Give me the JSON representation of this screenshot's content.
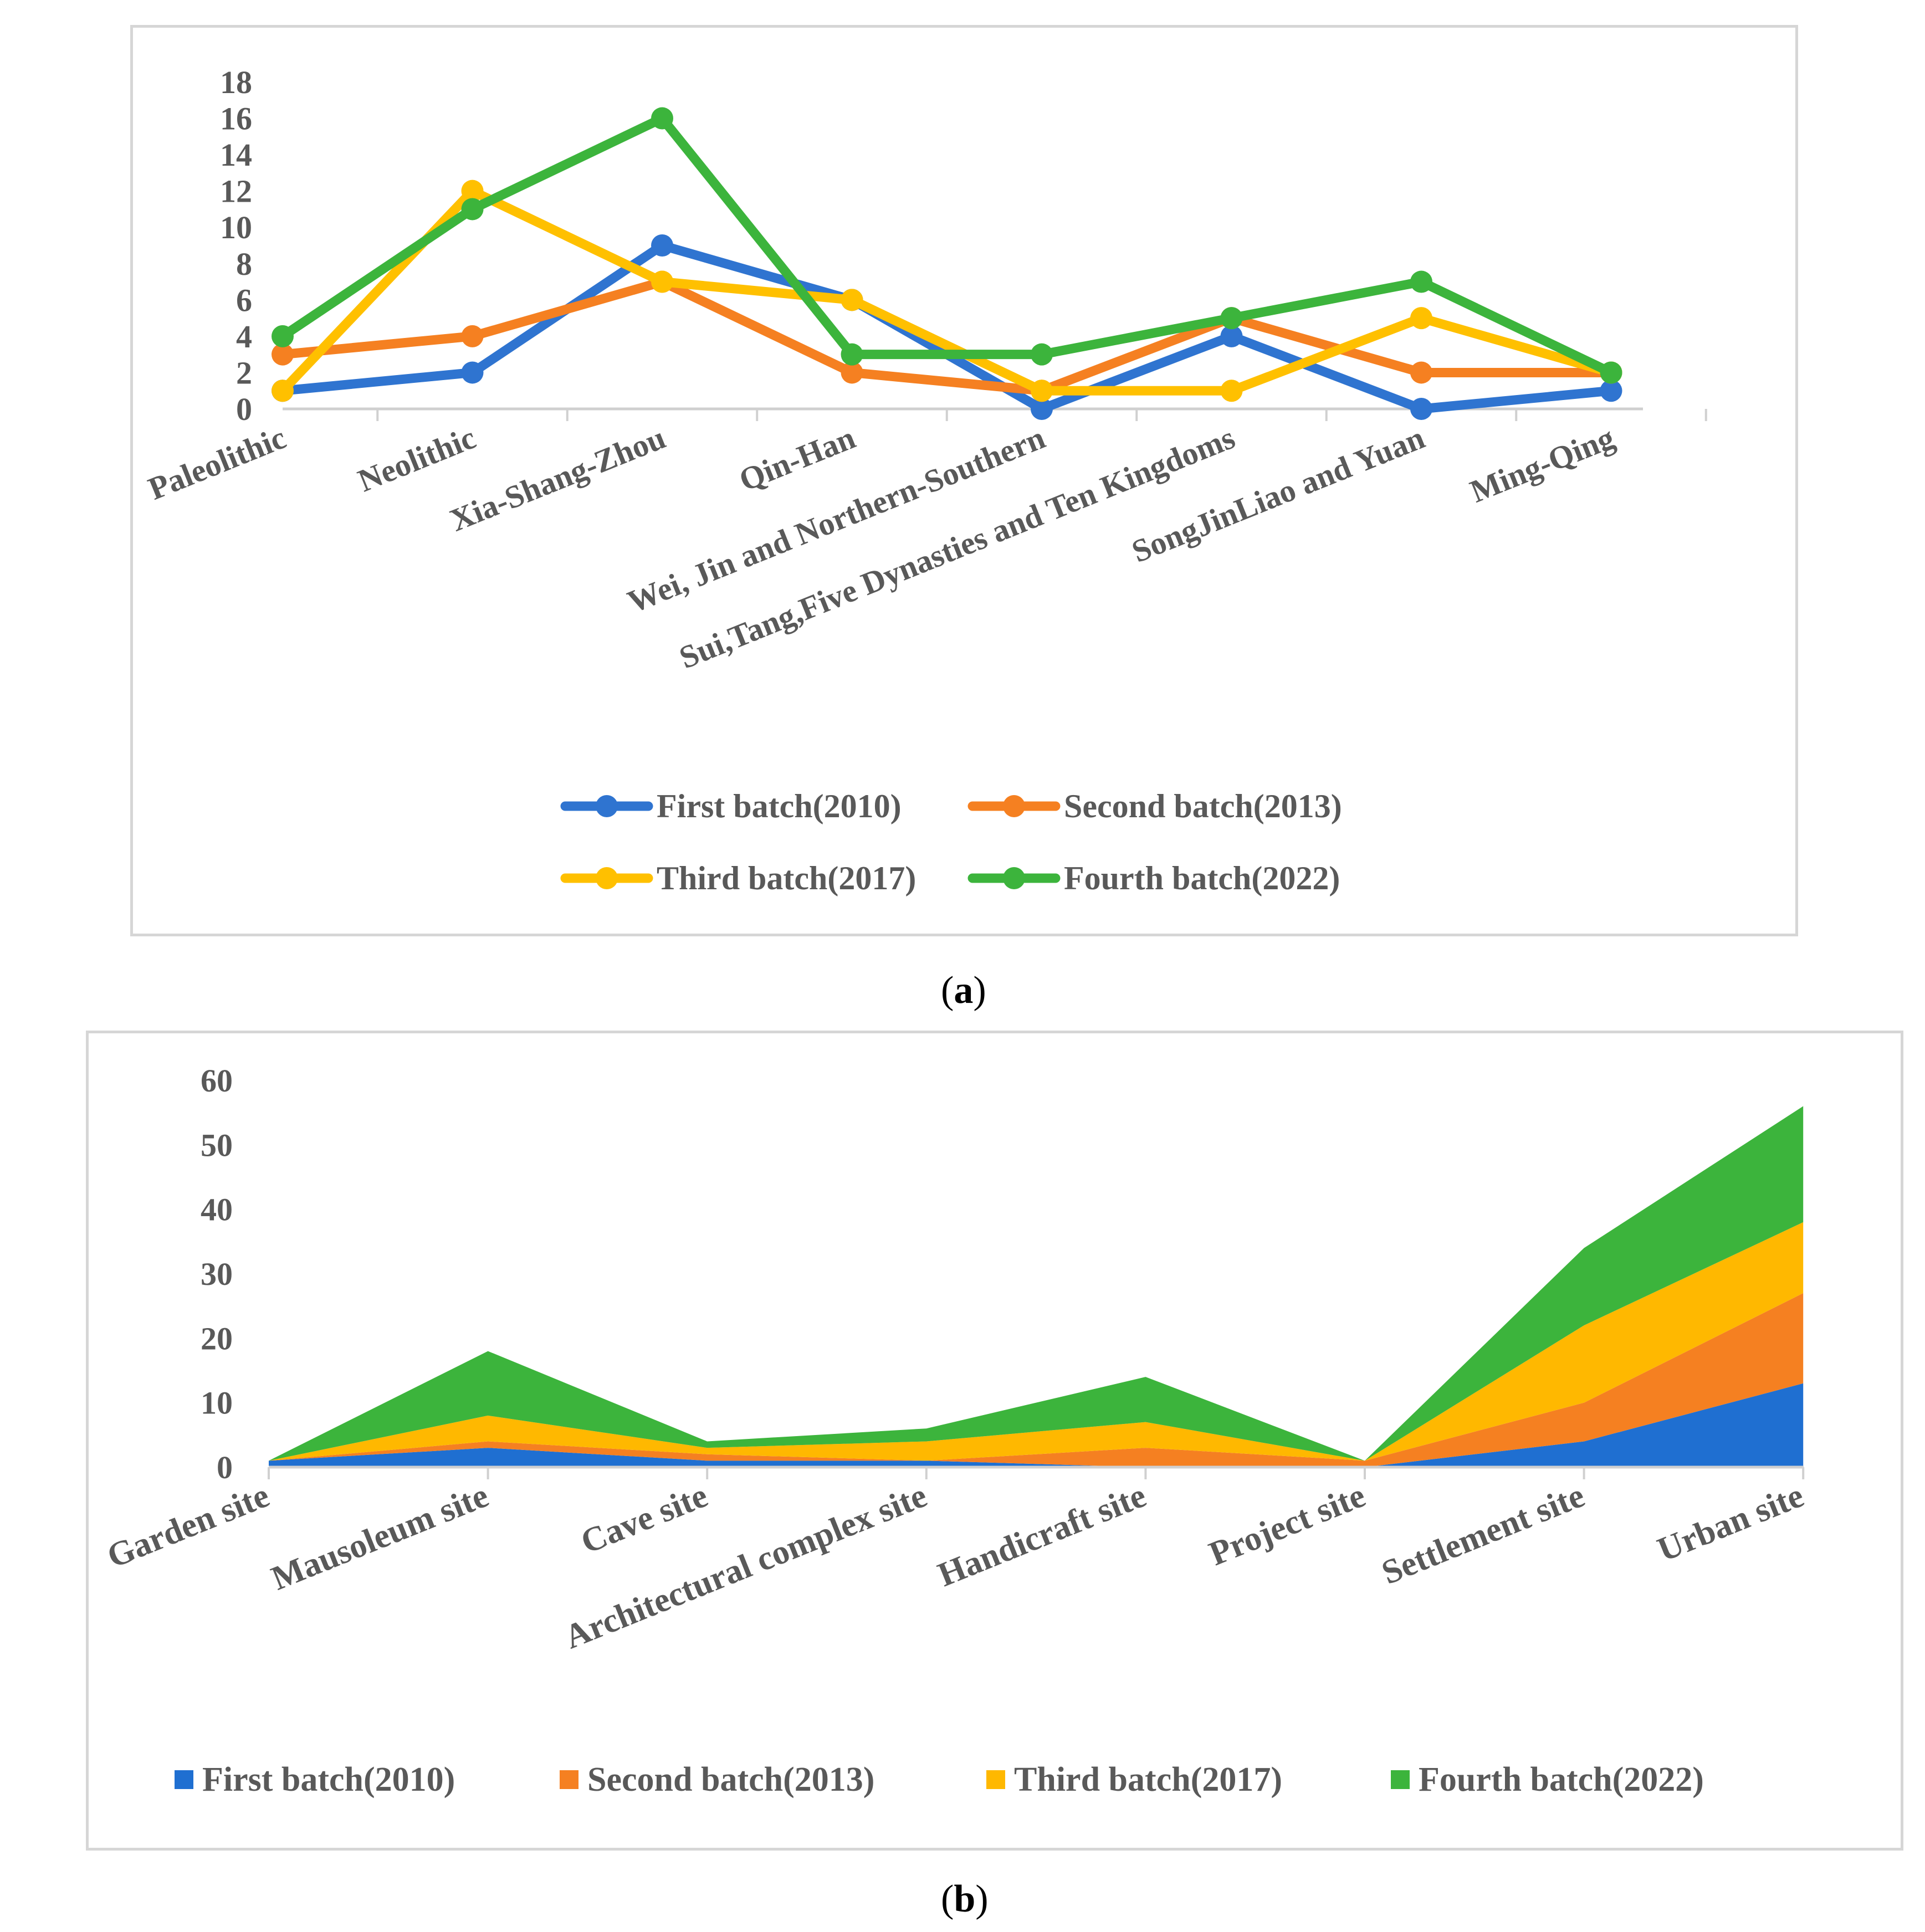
{
  "chart_data": [
    {
      "type": "line",
      "panel": "a",
      "title": "",
      "xlabel": "",
      "ylabel": "",
      "categories": [
        "Paleolithic",
        "Neolithic",
        "Xia-Shang-Zhou",
        "Qin-Han",
        "Wei, Jin and Northern-Southern",
        "Sui,Tang,Five Dynasties and Ten Kingdoms",
        "SongJinLiao and Yuan",
        "Ming-Qing"
      ],
      "yticks": [
        "0",
        "2",
        "4",
        "6",
        "8",
        "10",
        "12",
        "14",
        "16",
        "18"
      ],
      "ylim": [
        0,
        18
      ],
      "series": [
        {
          "name": "First batch(2010)",
          "color": "#2f74d0",
          "values": [
            1,
            2,
            9,
            6,
            0,
            4,
            0,
            1
          ]
        },
        {
          "name": "Second batch(2013)",
          "color": "#f58021",
          "values": [
            3,
            4,
            7,
            2,
            1,
            5,
            2,
            2
          ]
        },
        {
          "name": "Third batch(2017)",
          "color": "#ffc000",
          "values": [
            1,
            12,
            7,
            6,
            1,
            1,
            5,
            2
          ]
        },
        {
          "name": "Fourth batch(2022)",
          "color": "#3cb43c",
          "values": [
            4,
            11,
            16,
            3,
            3,
            5,
            7,
            2
          ]
        }
      ],
      "legend_position": "bottom"
    },
    {
      "type": "area",
      "panel": "b",
      "stacked": true,
      "title": "",
      "xlabel": "",
      "ylabel": "",
      "categories": [
        "Garden site",
        "Mausoleum site",
        "Cave site",
        "Architectural complex site",
        "Handicraft site",
        "Project site",
        "Settlement site",
        "Urban site"
      ],
      "yticks": [
        "0",
        "10",
        "20",
        "30",
        "40",
        "50",
        "60"
      ],
      "ylim": [
        0,
        60
      ],
      "series": [
        {
          "name": "First batch(2010)",
          "color": "#1f6fd1",
          "values": [
            1,
            3,
            1,
            1,
            0,
            0,
            4,
            13
          ]
        },
        {
          "name": "Second batch(2013)",
          "color": "#f58021",
          "values": [
            0,
            1,
            1,
            0,
            3,
            1,
            6,
            14
          ]
        },
        {
          "name": "Third batch(2017)",
          "color": "#ffb800",
          "values": [
            0,
            4,
            1,
            3,
            4,
            0,
            12,
            11
          ]
        },
        {
          "name": "Fourth batch(2022)",
          "color": "#3cb43c",
          "values": [
            0,
            10,
            1,
            2,
            7,
            0,
            12,
            18
          ]
        }
      ],
      "legend_position": "bottom"
    }
  ],
  "captions": {
    "a_letter": "a",
    "b_letter": "b"
  }
}
